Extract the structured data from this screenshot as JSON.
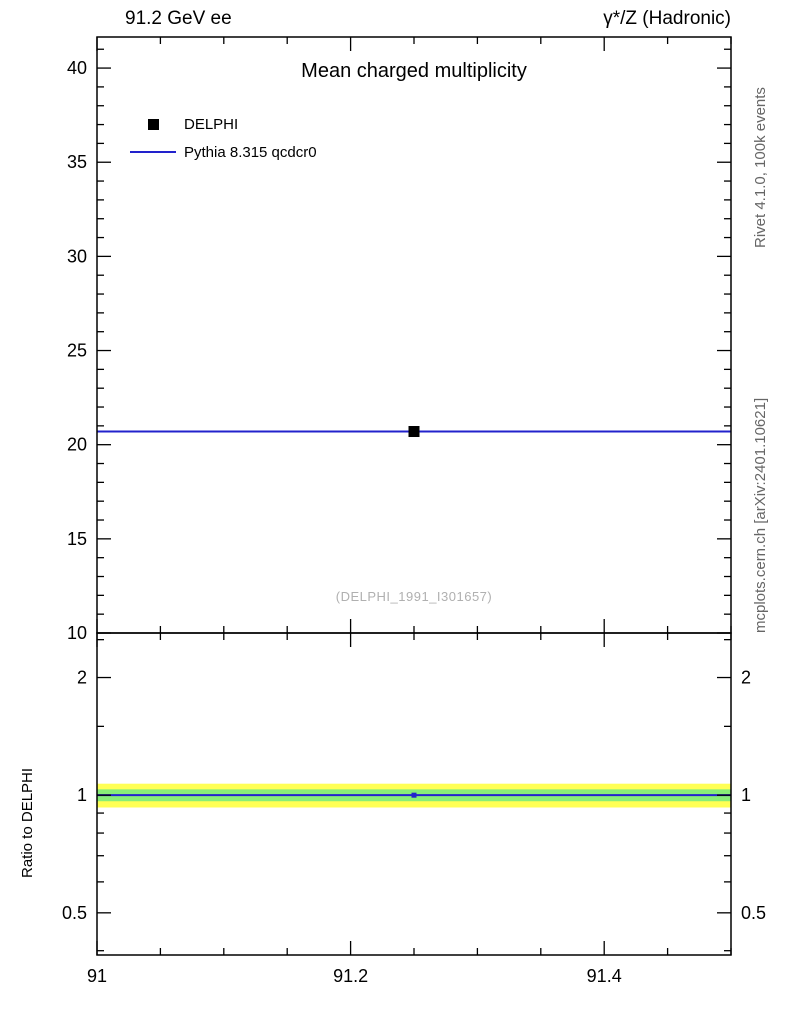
{
  "chart_data": {
    "type": "scatter",
    "title": "Mean charged multiplicity",
    "top_left_label": "91.2 GeV ee",
    "top_right_label": "γ*/Z (Hadronic)",
    "watermark": "(DELPHI_1991_I301657)",
    "xlim": [
      91.0,
      91.5
    ],
    "x_major_ticks": [
      91.0,
      91.2,
      91.4
    ],
    "x_major_tick_labels": [
      "91",
      "91.2",
      "91.4"
    ],
    "x_minor_step": 0.05,
    "legend": [
      {
        "label": "DELPHI",
        "marker": "square",
        "color": "#000000"
      },
      {
        "label": "Pythia 8.315 qcdcr0",
        "marker": "line",
        "color": "#2222cc"
      }
    ],
    "main_panel": {
      "ylim": [
        10,
        41.65
      ],
      "y_major_ticks": [
        10,
        15,
        20,
        25,
        30,
        35,
        40
      ],
      "y_major_tick_labels": [
        "10",
        "15",
        "20",
        "25",
        "30",
        "35",
        "40"
      ],
      "y_minor_step": 1,
      "series": [
        {
          "name": "DELPHI",
          "type": "scatter",
          "marker": "square",
          "color": "#000000",
          "x": [
            91.25
          ],
          "y": [
            20.7
          ]
        },
        {
          "name": "Pythia 8.315 qcdcr0",
          "type": "line",
          "color": "#2222cc",
          "x": [
            91.0,
            91.5
          ],
          "y": [
            20.7,
            20.7
          ]
        }
      ]
    },
    "ratio_panel": {
      "ylabel": "Ratio to DELPHI",
      "yscale": "log",
      "ylim": [
        0.39,
        2.6
      ],
      "y_major_ticks": [
        0.5,
        1,
        2
      ],
      "y_major_tick_labels": [
        "0.5",
        "1",
        "2"
      ],
      "y_minor_ticks": [
        0.4,
        0.6,
        0.7,
        0.8,
        0.9,
        1.5,
        2.5
      ],
      "bands": [
        {
          "name": "data-total-uncertainty",
          "color": "#ffff55",
          "lo": 0.93,
          "hi": 1.07
        },
        {
          "name": "data-stat-uncertainty",
          "color": "#88ee77",
          "lo": 0.965,
          "hi": 1.035
        }
      ],
      "reference_line": {
        "y": 1.0,
        "color": "#000000"
      },
      "mc_line": {
        "y": 1.0,
        "color": "#2222cc"
      },
      "mc_point": {
        "x": 91.25,
        "y": 1.0,
        "color": "#2222cc"
      }
    },
    "side_labels": {
      "right_top": "Rivet 4.1.0, 100k events",
      "right_bottom": "mcplots.cern.ch [arXiv:2401.10621]"
    }
  }
}
